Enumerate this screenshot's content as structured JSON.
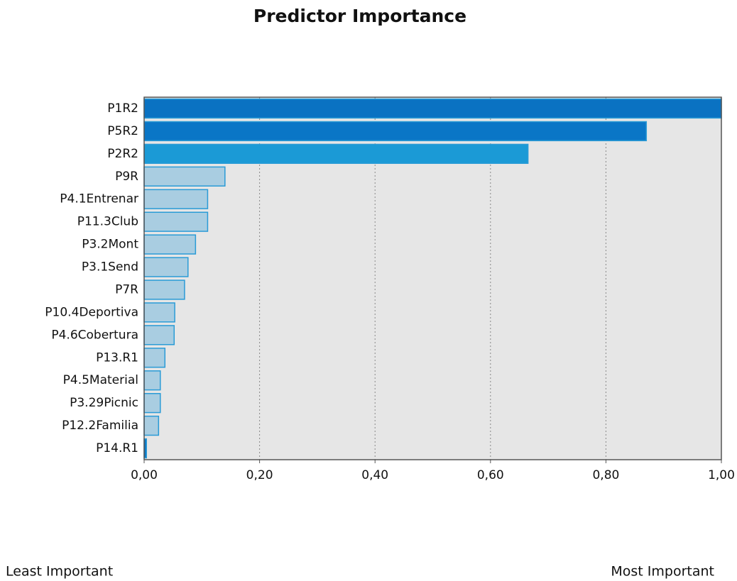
{
  "chart_data": {
    "type": "barh",
    "title": "Predictor Importance",
    "categories": [
      "P1R2",
      "P5R2",
      "P2R2",
      "P9R",
      "P4.1Entrenar",
      "P11.3Club",
      "P3.2Mont",
      "P3.1Send",
      "P7R",
      "P10.4Deportiva",
      "P4.6Cobertura",
      "P13.R1",
      "P4.5Material",
      "P3.29Picnic",
      "P12.2Familia",
      "P14.R1"
    ],
    "values": [
      1.0,
      0.87,
      0.665,
      0.14,
      0.11,
      0.11,
      0.089,
      0.076,
      0.07,
      0.053,
      0.052,
      0.036,
      0.028,
      0.028,
      0.025,
      0.004
    ],
    "colors": [
      "#0a72c2",
      "#0a76c6",
      "#1b9ad6",
      "#a9cde1",
      "#a9cde1",
      "#a9cde1",
      "#a9cde1",
      "#a9cde1",
      "#a9cde1",
      "#a9cde1",
      "#a9cde1",
      "#a9cde1",
      "#a9cde1",
      "#a9cde1",
      "#a9cde1",
      "#0a72c2"
    ],
    "edge_color": "#2a9bd6",
    "xlim": [
      0,
      1
    ],
    "xticks": [
      {
        "value": 0,
        "label": "0,00"
      },
      {
        "value": 0.2,
        "label": "0,20"
      },
      {
        "value": 0.4,
        "label": "0,40"
      },
      {
        "value": 0.6,
        "label": "0,60"
      },
      {
        "value": 0.8,
        "label": "0,80"
      },
      {
        "value": 1,
        "label": "1,00"
      }
    ],
    "grid": true,
    "annotations": [
      "Least Important",
      "Most Important"
    ]
  }
}
